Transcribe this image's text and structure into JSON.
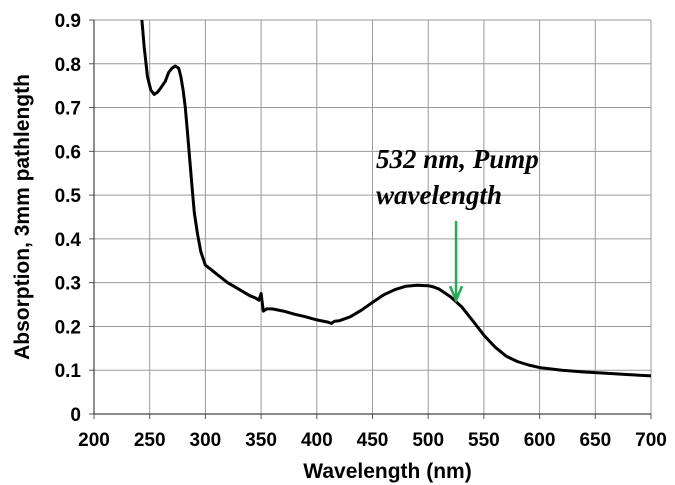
{
  "chart_data": {
    "type": "line",
    "xlabel": "Wavelength (nm)",
    "ylabel": "Absorption,  3mm pathlength",
    "xlim": [
      200,
      700
    ],
    "ylim": [
      0,
      0.9
    ],
    "x_ticks": [
      "200",
      "250",
      "300",
      "350",
      "400",
      "450",
      "500",
      "550",
      "600",
      "650",
      "700"
    ],
    "y_ticks": [
      "0",
      "0.1",
      "0.2",
      "0.3",
      "0.4",
      "0.5",
      "0.6",
      "0.7",
      "0.8",
      "0.9"
    ],
    "grid": true,
    "line_color": "#000000",
    "arrow_color": "#22aa55",
    "annotation": {
      "lines": [
        "532 nm, Pump",
        "wavelength"
      ],
      "arrow_x": 525,
      "arrow_y": 0.26
    },
    "series": [
      {
        "x": [
          243,
          245,
          248,
          251,
          254,
          257,
          260,
          264,
          267,
          270,
          273,
          276,
          278,
          280,
          282,
          284,
          286,
          288,
          290,
          293,
          296,
          300,
          305,
          310,
          320,
          330,
          340,
          345,
          348,
          350,
          352,
          355,
          360,
          370,
          380,
          390,
          400,
          410,
          413,
          416,
          420,
          430,
          440,
          450,
          460,
          470,
          480,
          490,
          500,
          505,
          510,
          520,
          530,
          540,
          550,
          560,
          570,
          580,
          590,
          600,
          620,
          640,
          660,
          680,
          700
        ],
        "y": [
          0.9,
          0.84,
          0.77,
          0.74,
          0.73,
          0.735,
          0.745,
          0.76,
          0.78,
          0.79,
          0.795,
          0.79,
          0.77,
          0.74,
          0.7,
          0.64,
          0.58,
          0.52,
          0.46,
          0.41,
          0.37,
          0.34,
          0.33,
          0.32,
          0.3,
          0.285,
          0.27,
          0.265,
          0.26,
          0.275,
          0.235,
          0.24,
          0.24,
          0.235,
          0.228,
          0.222,
          0.215,
          0.21,
          0.207,
          0.212,
          0.213,
          0.222,
          0.237,
          0.255,
          0.272,
          0.284,
          0.292,
          0.294,
          0.293,
          0.29,
          0.285,
          0.268,
          0.245,
          0.213,
          0.18,
          0.153,
          0.132,
          0.12,
          0.112,
          0.106,
          0.1,
          0.096,
          0.093,
          0.09,
          0.087
        ]
      }
    ]
  }
}
